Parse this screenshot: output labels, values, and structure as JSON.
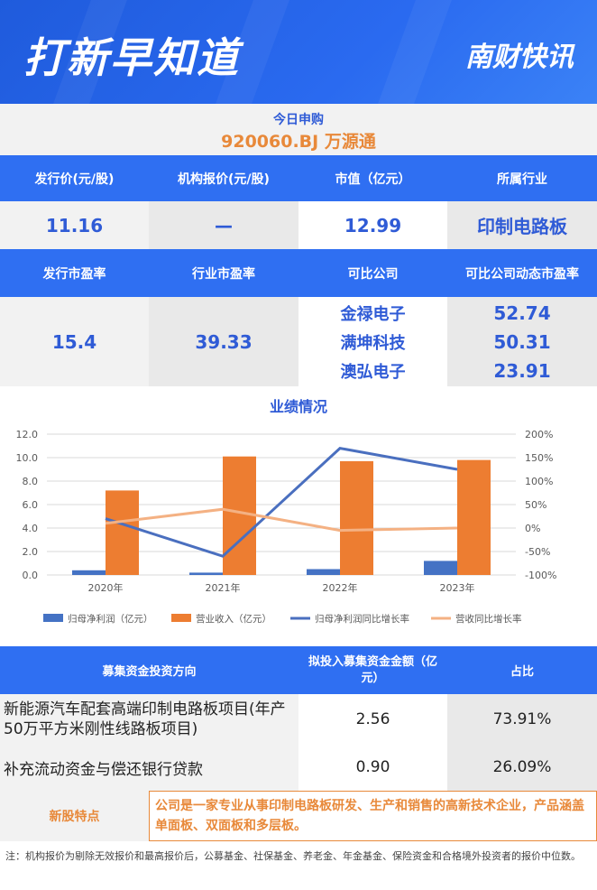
{
  "banner": {
    "title": "打新早知道",
    "brand": "南财快讯"
  },
  "today": {
    "label": "今日申购",
    "code": "920060.BJ 万源通"
  },
  "row1": {
    "headers": [
      "发行价(元/股)",
      "机构报价(元/股)",
      "市值（亿元）",
      "所属行业"
    ],
    "values": [
      "11.16",
      "—",
      "12.99",
      "印制电路板"
    ]
  },
  "row2": {
    "headers": [
      "发行市盈率",
      "行业市盈率",
      "可比公司",
      "可比公司动态市盈率"
    ],
    "issue_pe": "15.4",
    "industry_pe": "39.33",
    "companies": [
      {
        "name": "金禄电子",
        "pe": "52.74"
      },
      {
        "name": "满坤科技",
        "pe": "50.31"
      },
      {
        "name": "澳弘电子",
        "pe": "23.91"
      }
    ]
  },
  "chart_title": "业绩情况",
  "chart_data": {
    "type": "bar",
    "categories": [
      "2020年",
      "2021年",
      "2022年",
      "2023年"
    ],
    "series": [
      {
        "name": "归母净利润（亿元）",
        "kind": "bar",
        "axis": "left",
        "color": "#4472c4",
        "values": [
          0.4,
          0.2,
          0.5,
          1.2
        ]
      },
      {
        "name": "营业收入（亿元）",
        "kind": "bar",
        "axis": "left",
        "color": "#ed7d31",
        "values": [
          7.2,
          10.1,
          9.7,
          9.8
        ]
      },
      {
        "name": "归母净利润同比增长率",
        "kind": "line",
        "axis": "right",
        "color": "#4a6fbf",
        "values": [
          20,
          -60,
          170,
          125
        ]
      },
      {
        "name": "营收同比增长率",
        "kind": "line",
        "axis": "right",
        "color": "#f4b183",
        "values": [
          10,
          40,
          -5,
          0
        ]
      }
    ],
    "yticks_left": [
      "0.0",
      "2.0",
      "4.0",
      "6.0",
      "8.0",
      "10.0",
      "12.0"
    ],
    "yticks_right": [
      "-100%",
      "-50%",
      "0%",
      "50%",
      "100%",
      "150%",
      "200%"
    ],
    "ylim_left": [
      0,
      12
    ],
    "ylim_right": [
      -100,
      200
    ],
    "legend_position": "bottom"
  },
  "table": {
    "headers": [
      "募集资金投资方向",
      "拟投入募集资金金额（亿元）",
      "占比"
    ],
    "rows": [
      {
        "direction": "新能源汽车配套高端印制电路板项目(年产50万平方米刚性线路板项目)",
        "amount": "2.56",
        "ratio": "73.91%"
      },
      {
        "direction": "补充流动资金与偿还银行贷款",
        "amount": "0.90",
        "ratio": "26.09%"
      }
    ]
  },
  "feature": {
    "label": "新股特点",
    "text": "公司是一家专业从事印制电路板研发、生产和销售的高新技术企业，产品涵盖单面板、双面板和多层板。"
  },
  "note": "注：机构报价为剔除无效报价和最高报价后，公募基金、社保基金、养老金、年金基金、保险资金和合格境外投资者的报价中位数。"
}
